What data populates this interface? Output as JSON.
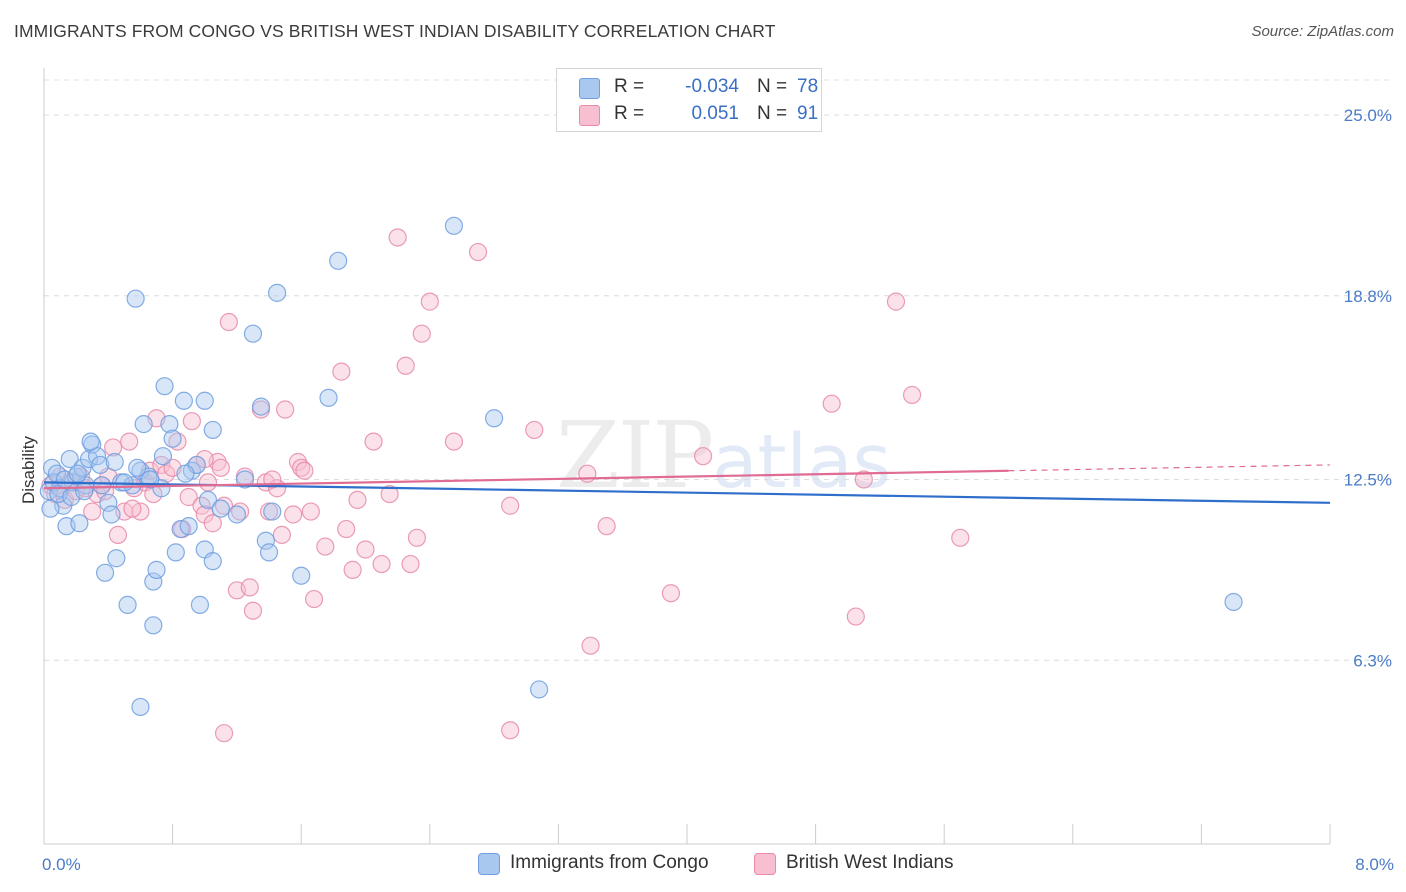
{
  "header": {
    "title": "IMMIGRANTS FROM CONGO VS BRITISH WEST INDIAN DISABILITY CORRELATION CHART",
    "source": "Source: ZipAtlas.com"
  },
  "watermark": {
    "zip": "ZIP",
    "atlas": "atlas"
  },
  "legend": {
    "rows": [
      {
        "r_label": "R =",
        "r_value": "-0.034",
        "n_label": "N =",
        "n_value": "78",
        "color": "#a9c8f0",
        "border": "#6f9fe0"
      },
      {
        "r_label": "R =",
        "r_value": "0.051",
        "n_label": "N =",
        "n_value": "91",
        "color": "#f7bfd0",
        "border": "#e88aa8"
      }
    ]
  },
  "bottom_legend": [
    {
      "label": "Immigrants from Congo",
      "color": "#a9c8f0",
      "border": "#6f9fe0"
    },
    {
      "label": "British West Indians",
      "color": "#f7bfd0",
      "border": "#e88aa8"
    }
  ],
  "chart_data": {
    "type": "scatter",
    "title": "IMMIGRANTS FROM CONGO VS BRITISH WEST INDIAN DISABILITY CORRELATION CHART",
    "ylabel": "Disability",
    "xlim": [
      0.0,
      8.0
    ],
    "ylim": [
      0.0,
      25.0
    ],
    "x_tick_labels": [
      "0.0%",
      "8.0%"
    ],
    "y_ticks": [
      6.3,
      12.5,
      18.8,
      25.0
    ],
    "y_tick_labels": [
      "6.3%",
      "12.5%",
      "18.8%",
      "25.0%"
    ],
    "grid": "horizontal dashed",
    "legend_placement": "top-center",
    "series": [
      {
        "name": "Immigrants from Congo",
        "color": "#6f9fe0",
        "fill": "#a9c8f0",
        "trend": {
          "x": [
            0.0,
            8.0
          ],
          "y": [
            12.4,
            11.7
          ],
          "style": "solid",
          "color": "#2f6fcb"
        },
        "points": [
          [
            0.03,
            12.1
          ],
          [
            0.05,
            12.9
          ],
          [
            0.06,
            12.4
          ],
          [
            0.08,
            12.7
          ],
          [
            0.1,
            12.2
          ],
          [
            0.12,
            11.6
          ],
          [
            0.14,
            10.9
          ],
          [
            0.16,
            13.2
          ],
          [
            0.18,
            12.4
          ],
          [
            0.2,
            12.6
          ],
          [
            0.22,
            11.0
          ],
          [
            0.24,
            12.9
          ],
          [
            0.26,
            12.3
          ],
          [
            0.28,
            13.2
          ],
          [
            0.3,
            13.7
          ],
          [
            0.33,
            13.3
          ],
          [
            0.35,
            13.0
          ],
          [
            0.38,
            9.3
          ],
          [
            0.4,
            11.7
          ],
          [
            0.42,
            11.3
          ],
          [
            0.45,
            9.8
          ],
          [
            0.48,
            12.4
          ],
          [
            0.52,
            8.2
          ],
          [
            0.55,
            12.3
          ],
          [
            0.57,
            18.7
          ],
          [
            0.6,
            12.8
          ],
          [
            0.62,
            14.4
          ],
          [
            0.65,
            12.6
          ],
          [
            0.68,
            9.0
          ],
          [
            0.7,
            9.4
          ],
          [
            0.73,
            12.2
          ],
          [
            0.75,
            15.7
          ],
          [
            0.78,
            14.4
          ],
          [
            0.6,
            4.7
          ],
          [
            0.68,
            7.5
          ],
          [
            0.8,
            13.9
          ],
          [
            0.82,
            10.0
          ],
          [
            0.85,
            10.8
          ],
          [
            0.87,
            15.2
          ],
          [
            0.9,
            10.9
          ],
          [
            0.92,
            12.8
          ],
          [
            0.95,
            13.0
          ],
          [
            0.97,
            8.2
          ],
          [
            1.0,
            10.1
          ],
          [
            1.0,
            15.2
          ],
          [
            1.02,
            11.8
          ],
          [
            1.05,
            9.7
          ],
          [
            1.05,
            14.2
          ],
          [
            1.2,
            11.3
          ],
          [
            1.25,
            12.5
          ],
          [
            1.3,
            17.5
          ],
          [
            1.35,
            15.0
          ],
          [
            1.38,
            10.4
          ],
          [
            1.4,
            10.0
          ],
          [
            1.42,
            11.4
          ],
          [
            1.45,
            18.9
          ],
          [
            1.6,
            9.2
          ],
          [
            1.77,
            15.3
          ],
          [
            1.83,
            20.0
          ],
          [
            2.55,
            21.2
          ],
          [
            2.8,
            14.6
          ],
          [
            3.08,
            5.3
          ],
          [
            7.4,
            8.3
          ],
          [
            0.04,
            11.5
          ],
          [
            0.09,
            12.0
          ],
          [
            0.13,
            12.5
          ],
          [
            0.17,
            11.9
          ],
          [
            0.21,
            12.7
          ],
          [
            0.25,
            12.1
          ],
          [
            0.29,
            13.8
          ],
          [
            0.36,
            12.3
          ],
          [
            0.44,
            13.1
          ],
          [
            0.5,
            12.4
          ],
          [
            0.58,
            12.9
          ],
          [
            0.66,
            12.5
          ],
          [
            0.74,
            13.3
          ],
          [
            0.88,
            12.7
          ],
          [
            1.1,
            11.5
          ]
        ]
      },
      {
        "name": "British West Indians",
        "color": "#e88aa8",
        "fill": "#f7bfd0",
        "trend": {
          "x": [
            0.0,
            6.0,
            8.0
          ],
          "y": [
            12.2,
            12.8,
            13.0
          ],
          "style": "solid-then-dashed",
          "color": "#e06b93"
        },
        "points": [
          [
            0.04,
            12.3
          ],
          [
            0.07,
            12.0
          ],
          [
            0.1,
            12.6
          ],
          [
            0.13,
            11.8
          ],
          [
            0.16,
            12.4
          ],
          [
            0.2,
            12.1
          ],
          [
            0.23,
            12.6
          ],
          [
            0.26,
            12.2
          ],
          [
            0.3,
            11.4
          ],
          [
            0.33,
            12.0
          ],
          [
            0.36,
            12.3
          ],
          [
            0.4,
            12.6
          ],
          [
            0.43,
            13.6
          ],
          [
            0.46,
            10.6
          ],
          [
            0.5,
            11.4
          ],
          [
            0.53,
            13.8
          ],
          [
            0.56,
            12.2
          ],
          [
            0.6,
            11.4
          ],
          [
            0.63,
            12.4
          ],
          [
            0.66,
            12.8
          ],
          [
            0.7,
            14.6
          ],
          [
            0.73,
            13.0
          ],
          [
            0.76,
            12.7
          ],
          [
            0.8,
            12.9
          ],
          [
            0.83,
            13.8
          ],
          [
            0.86,
            10.8
          ],
          [
            0.9,
            11.9
          ],
          [
            0.92,
            14.5
          ],
          [
            0.95,
            13.0
          ],
          [
            0.98,
            11.6
          ],
          [
            1.0,
            11.3
          ],
          [
            1.02,
            12.4
          ],
          [
            1.05,
            11.0
          ],
          [
            1.08,
            13.1
          ],
          [
            1.1,
            12.9
          ],
          [
            1.12,
            11.6
          ],
          [
            1.15,
            17.9
          ],
          [
            1.2,
            8.7
          ],
          [
            1.22,
            11.4
          ],
          [
            1.25,
            12.6
          ],
          [
            1.28,
            8.8
          ],
          [
            1.3,
            8.0
          ],
          [
            1.35,
            14.9
          ],
          [
            1.38,
            12.4
          ],
          [
            1.4,
            11.4
          ],
          [
            1.45,
            12.2
          ],
          [
            1.48,
            10.6
          ],
          [
            1.5,
            14.9
          ],
          [
            1.55,
            11.3
          ],
          [
            1.58,
            13.1
          ],
          [
            1.6,
            12.9
          ],
          [
            1.62,
            12.8
          ],
          [
            1.66,
            11.4
          ],
          [
            1.68,
            8.4
          ],
          [
            1.75,
            10.2
          ],
          [
            1.85,
            16.2
          ],
          [
            1.88,
            10.8
          ],
          [
            1.92,
            9.4
          ],
          [
            1.95,
            11.8
          ],
          [
            2.0,
            10.1
          ],
          [
            2.05,
            13.8
          ],
          [
            2.1,
            9.6
          ],
          [
            2.15,
            12.0
          ],
          [
            2.2,
            20.8
          ],
          [
            2.25,
            16.4
          ],
          [
            2.28,
            9.6
          ],
          [
            2.32,
            10.5
          ],
          [
            2.35,
            17.5
          ],
          [
            2.4,
            18.6
          ],
          [
            2.55,
            13.8
          ],
          [
            2.7,
            20.3
          ],
          [
            2.9,
            11.6
          ],
          [
            3.05,
            14.2
          ],
          [
            3.38,
            12.7
          ],
          [
            3.4,
            6.8
          ],
          [
            3.5,
            10.9
          ],
          [
            3.9,
            8.6
          ],
          [
            4.1,
            13.3
          ],
          [
            4.9,
            15.1
          ],
          [
            5.05,
            7.8
          ],
          [
            5.1,
            12.5
          ],
          [
            5.3,
            18.6
          ],
          [
            5.4,
            15.4
          ],
          [
            5.7,
            10.5
          ],
          [
            1.12,
            3.8
          ],
          [
            2.9,
            3.9
          ],
          [
            0.55,
            11.5
          ],
          [
            0.68,
            12.0
          ],
          [
            1.0,
            13.2
          ],
          [
            1.42,
            12.5
          ],
          [
            0.38,
            12.1
          ]
        ]
      }
    ]
  }
}
